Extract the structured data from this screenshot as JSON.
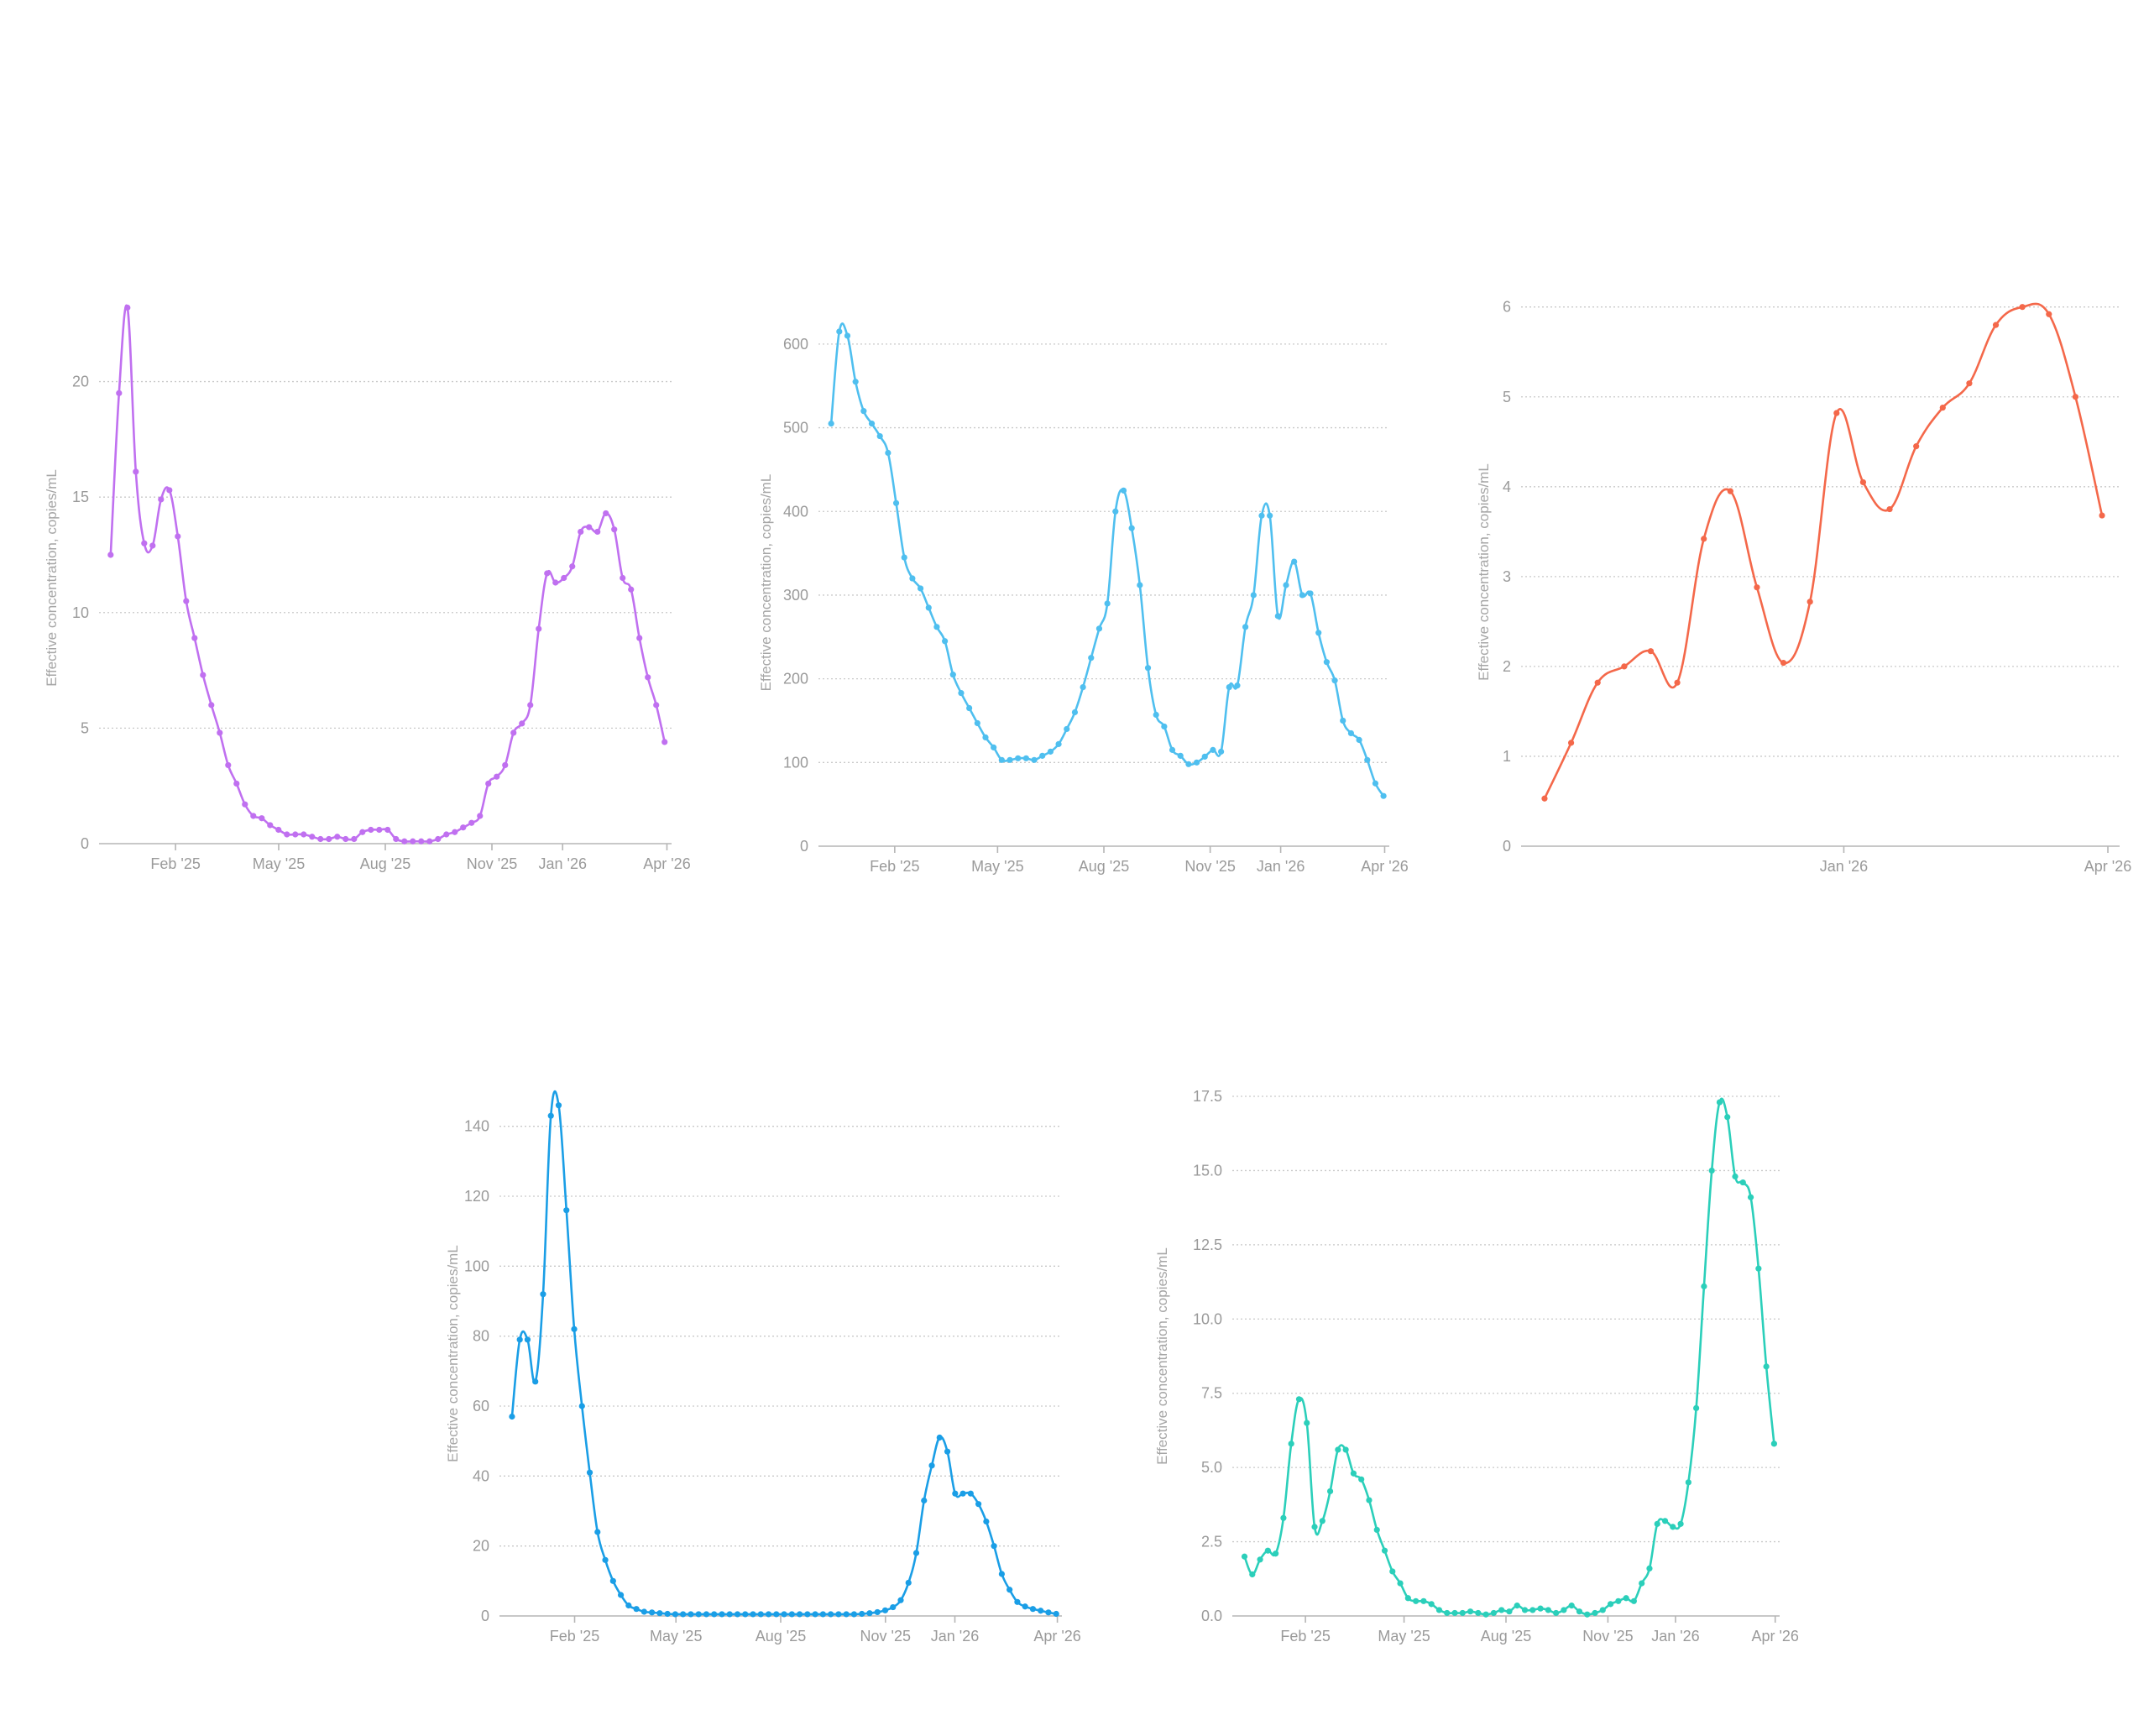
{
  "y_axis_label": "Effective concentration, copies/mL",
  "chart_data": [
    {
      "type": "line",
      "color": "#c070f0",
      "ylim": [
        0,
        23
      ],
      "yticks": [
        0,
        5,
        10,
        15,
        20
      ],
      "ytick_labels": [
        "0",
        "5",
        "10",
        "15",
        "20"
      ],
      "xlim": [
        "2024-11-27",
        "2026-04-05"
      ],
      "xtick_dates": [
        "2025-02-01",
        "2025-05-01",
        "2025-08-01",
        "2025-11-01",
        "2026-01-01",
        "2026-04-01"
      ],
      "xtick_labels": [
        "Feb '25",
        "May '25",
        "Aug '25",
        "Nov '25",
        "Jan '26",
        "Apr '26"
      ],
      "x_start": "2024-12-07",
      "x_end": "2026-03-30",
      "values": [
        12.5,
        19.5,
        23.2,
        16.1,
        13.0,
        12.9,
        14.9,
        15.3,
        13.3,
        10.5,
        8.9,
        7.3,
        6.0,
        4.8,
        3.4,
        2.6,
        1.7,
        1.2,
        1.1,
        0.8,
        0.6,
        0.4,
        0.4,
        0.4,
        0.3,
        0.2,
        0.2,
        0.3,
        0.2,
        0.2,
        0.5,
        0.6,
        0.6,
        0.6,
        0.2,
        0.1,
        0.1,
        0.1,
        0.1,
        0.2,
        0.4,
        0.5,
        0.7,
        0.9,
        1.2,
        2.6,
        2.9,
        3.4,
        4.8,
        5.2,
        6.0,
        9.3,
        11.7,
        11.3,
        11.5,
        12.0,
        13.5,
        13.7,
        13.5,
        14.3,
        13.6,
        11.5,
        11.0,
        8.9,
        7.2,
        6.0,
        4.4
      ]
    },
    {
      "type": "line",
      "color": "#4fbfef",
      "ylim": [
        0,
        630
      ],
      "yticks": [
        0,
        100,
        200,
        300,
        400,
        500,
        600
      ],
      "ytick_labels": [
        "0",
        "100",
        "200",
        "300",
        "400",
        "500",
        "600"
      ],
      "xlim": [
        "2024-11-27",
        "2026-04-05"
      ],
      "xtick_dates": [
        "2025-02-01",
        "2025-05-01",
        "2025-08-01",
        "2025-11-01",
        "2026-01-01",
        "2026-04-01"
      ],
      "xtick_labels": [
        "Feb '25",
        "May '25",
        "Aug '25",
        "Nov '25",
        "Jan '26",
        "Apr '26"
      ],
      "x_start": "2024-12-08",
      "x_end": "2026-03-31",
      "values": [
        505,
        615,
        610,
        555,
        520,
        505,
        490,
        470,
        410,
        345,
        320,
        308,
        285,
        262,
        245,
        205,
        183,
        165,
        147,
        130,
        118,
        103,
        103,
        105,
        105,
        103,
        108,
        113,
        122,
        140,
        160,
        190,
        225,
        260,
        290,
        400,
        425,
        380,
        312,
        213,
        157,
        143,
        115,
        108,
        98,
        100,
        107,
        115,
        113,
        190,
        192,
        262,
        300,
        395,
        395,
        275,
        312,
        340,
        300,
        302,
        255,
        220,
        198,
        150,
        135,
        127,
        103,
        75,
        60
      ]
    },
    {
      "type": "line",
      "color": "#f4684a",
      "ylim": [
        0,
        6.1
      ],
      "yticks": [
        0,
        1,
        2,
        3,
        4,
        5,
        6
      ],
      "ytick_labels": [
        "0",
        "1",
        "2",
        "3",
        "4",
        "5",
        "6"
      ],
      "xlim": [
        "2025-09-13",
        "2026-04-05"
      ],
      "xtick_dates": [
        "2026-01-01",
        "2026-04-01"
      ],
      "xtick_labels": [
        "Jan '26",
        "Apr '26"
      ],
      "x_start": "2025-09-21",
      "x_end": "2026-03-30",
      "values": [
        0.53,
        1.15,
        1.82,
        2.0,
        2.17,
        1.82,
        3.42,
        3.95,
        2.88,
        2.04,
        2.72,
        4.82,
        4.05,
        3.75,
        4.45,
        4.88,
        5.15,
        5.8,
        6.0,
        5.92,
        5.0,
        3.68
      ]
    },
    {
      "type": "line",
      "color": "#1a9ee6",
      "ylim": [
        0,
        150
      ],
      "yticks": [
        0,
        20,
        40,
        60,
        80,
        100,
        120,
        140
      ],
      "ytick_labels": [
        "0",
        "20",
        "40",
        "60",
        "80",
        "100",
        "120",
        "140"
      ],
      "xlim": [
        "2024-11-27",
        "2026-04-05"
      ],
      "xtick_dates": [
        "2025-02-01",
        "2025-05-01",
        "2025-08-01",
        "2025-11-01",
        "2026-01-01",
        "2026-04-01"
      ],
      "xtick_labels": [
        "Feb '25",
        "May '25",
        "Aug '25",
        "Nov '25",
        "Jan '26",
        "Apr '26"
      ],
      "x_start": "2024-12-08",
      "x_end": "2026-03-31",
      "values": [
        57,
        79,
        79,
        67,
        92,
        143,
        146,
        116,
        82,
        60,
        41,
        24,
        16,
        10,
        6,
        3,
        2,
        1.2,
        1,
        0.8,
        0.6,
        0.5,
        0.5,
        0.5,
        0.5,
        0.5,
        0.5,
        0.5,
        0.5,
        0.5,
        0.5,
        0.5,
        0.5,
        0.5,
        0.5,
        0.5,
        0.5,
        0.5,
        0.5,
        0.5,
        0.5,
        0.5,
        0.5,
        0.5,
        0.5,
        0.6,
        0.8,
        1.1,
        1.6,
        2.5,
        4.5,
        9.5,
        18,
        33,
        43,
        51,
        47,
        35,
        35,
        35,
        32,
        27,
        20,
        12,
        7.5,
        4,
        2.7,
        2,
        1.5,
        1,
        0.6
      ]
    },
    {
      "type": "line",
      "color": "#2bcfba",
      "ylim": [
        0,
        17.5
      ],
      "yticks": [
        0,
        2.5,
        5,
        7.5,
        10,
        12.5,
        15,
        17.5
      ],
      "ytick_labels": [
        "0.0",
        "2.5",
        "5.0",
        "7.5",
        "10.0",
        "12.5",
        "15.0",
        "17.5"
      ],
      "xlim": [
        "2024-11-27",
        "2026-04-05"
      ],
      "xtick_dates": [
        "2025-02-01",
        "2025-05-01",
        "2025-08-01",
        "2025-11-01",
        "2026-01-01",
        "2026-04-01"
      ],
      "xtick_labels": [
        "Feb '25",
        "May '25",
        "Aug '25",
        "Nov '25",
        "Jan '26",
        "Apr '26"
      ],
      "x_start": "2024-12-08",
      "x_end": "2026-03-31",
      "values": [
        2.0,
        1.4,
        1.9,
        2.2,
        2.1,
        3.3,
        5.8,
        7.3,
        6.5,
        3.0,
        3.2,
        4.2,
        5.6,
        5.6,
        4.8,
        4.6,
        3.9,
        2.9,
        2.2,
        1.5,
        1.1,
        0.6,
        0.5,
        0.5,
        0.4,
        0.2,
        0.1,
        0.1,
        0.1,
        0.15,
        0.1,
        0.05,
        0.1,
        0.2,
        0.15,
        0.35,
        0.2,
        0.2,
        0.25,
        0.2,
        0.1,
        0.2,
        0.35,
        0.15,
        0.05,
        0.1,
        0.2,
        0.4,
        0.5,
        0.6,
        0.5,
        1.1,
        1.6,
        3.1,
        3.2,
        3.0,
        3.1,
        4.5,
        7.0,
        11.1,
        15.0,
        17.3,
        16.8,
        14.8,
        14.6,
        14.1,
        11.7,
        8.4,
        5.8
      ]
    }
  ]
}
